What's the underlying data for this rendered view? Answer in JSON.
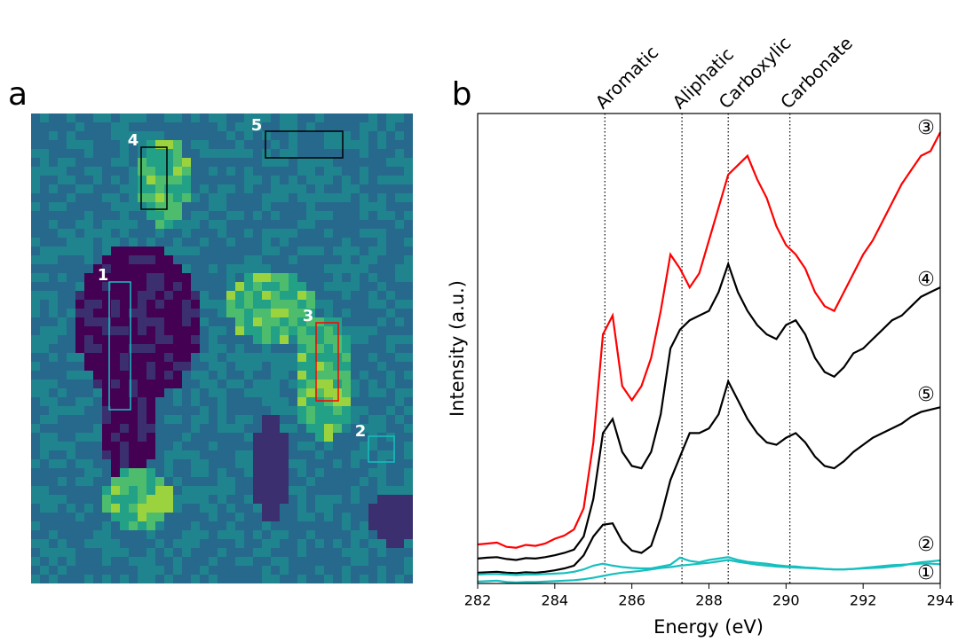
{
  "panel_labels": [
    "a",
    "b"
  ],
  "image": {
    "region_labels": [
      "1",
      "2",
      "3",
      "4",
      "5"
    ]
  },
  "chart_data": {
    "type": "line",
    "xlabel": "Energy (eV)",
    "ylabel": "Intensity (a.u.)",
    "xlim": [
      282,
      294
    ],
    "xticks": [
      282,
      284,
      286,
      288,
      290,
      292,
      294
    ],
    "ylim": [
      0,
      100
    ],
    "features": [
      {
        "label": "Aromatic",
        "x": 285.3
      },
      {
        "label": "Aliphatic",
        "x": 287.3
      },
      {
        "label": "Carboxylic",
        "x": 288.5
      },
      {
        "label": "Carbonate",
        "x": 290.1
      }
    ],
    "x": [
      282,
      282.25,
      282.5,
      282.75,
      283,
      283.25,
      283.5,
      283.75,
      284,
      284.25,
      284.5,
      284.75,
      285,
      285.25,
      285.5,
      285.75,
      286,
      286.25,
      286.5,
      286.75,
      287,
      287.25,
      287.5,
      287.75,
      288,
      288.25,
      288.5,
      288.75,
      289,
      289.25,
      289.5,
      289.75,
      290,
      290.25,
      290.5,
      290.75,
      291,
      291.25,
      291.5,
      291.75,
      292,
      292.25,
      292.5,
      292.75,
      293,
      293.25,
      293.5,
      293.75,
      294
    ],
    "series": [
      {
        "name": "③",
        "color": "#ff0000",
        "values": [
          8.3,
          8.5,
          8.7,
          7.8,
          7.6,
          8.2,
          8.0,
          8.5,
          9.5,
          10.2,
          11.5,
          16,
          30,
          53,
          57,
          42,
          39,
          42,
          48,
          58,
          70,
          67,
          63,
          66,
          73,
          80,
          87,
          89,
          91,
          86,
          82,
          76,
          72,
          70,
          67,
          62,
          59,
          58,
          62,
          66,
          70,
          73,
          77,
          81,
          85,
          88,
          91,
          92,
          96
        ]
      },
      {
        "name": "④",
        "color": "#000000",
        "values": [
          5.3,
          5.5,
          5.6,
          5.2,
          5.0,
          5.4,
          5.3,
          5.6,
          6.0,
          6.5,
          7.2,
          10,
          18,
          32,
          35,
          28,
          25,
          24.5,
          28,
          36,
          50,
          54,
          56,
          57,
          58,
          62,
          68,
          62,
          58,
          55,
          53,
          52,
          55,
          56,
          53,
          48,
          45,
          44,
          46,
          49,
          50,
          52,
          54,
          56,
          57,
          59,
          61,
          62,
          63
        ]
      },
      {
        "name": "⑤",
        "color": "#000000",
        "values": [
          2.3,
          2.4,
          2.5,
          2.3,
          2.2,
          2.4,
          2.3,
          2.5,
          2.8,
          3.2,
          3.8,
          6,
          10,
          12.5,
          12.8,
          9,
          7,
          6.5,
          8,
          14,
          22,
          27,
          32,
          32,
          33,
          36,
          43,
          39,
          35,
          32,
          30,
          29.5,
          31,
          32,
          30,
          27,
          25,
          24.5,
          26,
          28,
          29.5,
          31,
          32,
          33,
          34,
          35.5,
          36.5,
          37,
          37.5
        ]
      },
      {
        "name": "②",
        "color": "#17bfbf",
        "values": [
          1.9,
          2.0,
          2.0,
          1.9,
          1.8,
          1.9,
          1.9,
          2.0,
          2.1,
          2.2,
          2.5,
          3.0,
          3.8,
          4.2,
          3.8,
          3.5,
          3.3,
          3.2,
          3.2,
          3.6,
          4.0,
          5.5,
          4.8,
          4.5,
          5.0,
          5.3,
          5.6,
          5.0,
          4.6,
          4.4,
          4.2,
          3.9,
          3.7,
          3.6,
          3.4,
          3.3,
          3.1,
          3.0,
          3.0,
          3.1,
          3.2,
          3.3,
          3.4,
          3.6,
          3.8,
          4.2,
          4.5,
          4.7,
          4.9
        ]
      },
      {
        "name": "①",
        "color": "#17bfbf",
        "values": [
          0.4,
          0.5,
          0.6,
          0.3,
          0.2,
          0.3,
          0.3,
          0.4,
          0.5,
          0.6,
          0.7,
          0.9,
          1.2,
          1.6,
          2.0,
          2.3,
          2.5,
          2.7,
          3.0,
          3.3,
          3.5,
          3.8,
          4.0,
          4.2,
          4.4,
          4.7,
          5.0,
          4.6,
          4.3,
          4.0,
          3.8,
          3.6,
          3.5,
          3.4,
          3.3,
          3.2,
          3.1,
          3.0,
          3.0,
          3.1,
          3.3,
          3.5,
          3.7,
          3.9,
          4.0,
          4.1,
          4.2,
          4.2,
          4.1
        ]
      }
    ]
  }
}
